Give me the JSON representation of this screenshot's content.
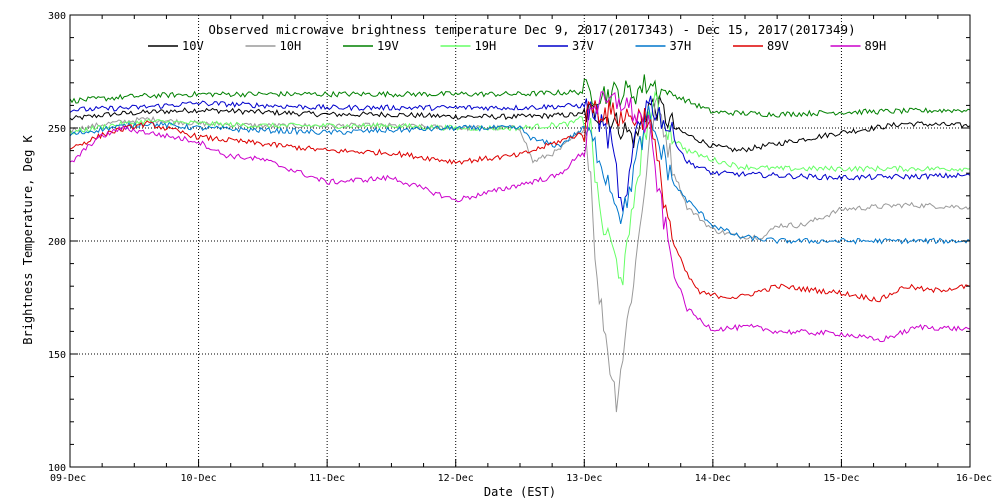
{
  "chart_data": {
    "type": "line",
    "title": "Observed microwave brightness temperature Dec  9, 2017(2017343) - Dec 15, 2017(2017349)",
    "xlabel": "Date (EST)",
    "ylabel": "Brightness Temperature, Deg K",
    "xlim": [
      0,
      7
    ],
    "ylim": [
      100,
      300
    ],
    "grid": true,
    "grid_style": "dotted",
    "legend_position": "top",
    "x_ticks": [
      {
        "value": 0,
        "label": "09-Dec"
      },
      {
        "value": 1,
        "label": "10-Dec"
      },
      {
        "value": 2,
        "label": "11-Dec"
      },
      {
        "value": 3,
        "label": "12-Dec"
      },
      {
        "value": 4,
        "label": "13-Dec"
      },
      {
        "value": 5,
        "label": "14-Dec"
      },
      {
        "value": 6,
        "label": "15-Dec"
      },
      {
        "value": 7,
        "label": "16-Dec"
      }
    ],
    "y_ticks": [
      {
        "value": 100,
        "label": "100"
      },
      {
        "value": 150,
        "label": "150"
      },
      {
        "value": 200,
        "label": "200"
      },
      {
        "value": 250,
        "label": "250"
      },
      {
        "value": 300,
        "label": "300"
      }
    ],
    "series": [
      {
        "name": "10V",
        "color": "#000000",
        "x": [
          0,
          0.3,
          0.6,
          1.0,
          1.5,
          2.0,
          2.5,
          3.0,
          3.5,
          4.0,
          4.1,
          4.2,
          4.3,
          4.4,
          4.5,
          4.6,
          4.7,
          4.8,
          5.0,
          5.2,
          5.5,
          6.0,
          6.5,
          7.0
        ],
        "y": [
          254,
          256,
          257,
          258,
          257,
          256,
          256,
          255,
          255,
          256,
          257,
          254,
          250,
          245,
          260,
          258,
          250,
          247,
          242,
          240,
          243,
          248,
          252,
          251
        ]
      },
      {
        "name": "10H",
        "color": "#9a9a9a",
        "x": [
          0,
          0.3,
          0.6,
          1.0,
          1.5,
          2.0,
          2.5,
          3.0,
          3.5,
          3.6,
          3.8,
          4.0,
          4.05,
          4.1,
          4.15,
          4.2,
          4.25,
          4.3,
          4.35,
          4.4,
          4.5,
          4.55,
          4.6,
          4.7,
          4.8,
          4.9,
          5.0,
          5.2,
          5.4,
          5.5,
          5.7,
          6.0,
          6.5,
          7.0
        ],
        "y": [
          249,
          252,
          254,
          252,
          251,
          251,
          251,
          250,
          250,
          235,
          240,
          250,
          230,
          180,
          165,
          145,
          130,
          150,
          170,
          190,
          240,
          260,
          255,
          230,
          215,
          210,
          205,
          202,
          202,
          207,
          207,
          214,
          216,
          215
        ]
      },
      {
        "name": "19V",
        "color": "#008000",
        "x": [
          0,
          0.5,
          1.0,
          2.0,
          3.0,
          3.5,
          4.0,
          4.2,
          4.4,
          4.5,
          4.6,
          4.8,
          5.0,
          5.5,
          6.0,
          7.0
        ],
        "y": [
          262,
          264,
          265,
          265,
          265,
          265,
          266,
          265,
          266,
          270,
          267,
          262,
          257,
          256,
          257,
          258
        ]
      },
      {
        "name": "19H",
        "color": "#66ff66",
        "x": [
          0,
          0.3,
          0.6,
          1.0,
          1.5,
          2.0,
          2.5,
          3.0,
          3.5,
          3.9,
          4.0,
          4.05,
          4.1,
          4.15,
          4.2,
          4.25,
          4.3,
          4.35,
          4.4,
          4.45,
          4.5,
          4.55,
          4.6,
          4.7,
          4.8,
          5.0,
          5.2,
          5.5,
          6.0,
          7.0
        ],
        "y": [
          248,
          251,
          253,
          252,
          251,
          251,
          251,
          250,
          250,
          252,
          255,
          250,
          220,
          205,
          200,
          190,
          185,
          200,
          225,
          240,
          255,
          260,
          255,
          245,
          240,
          236,
          233,
          232,
          232,
          232
        ]
      },
      {
        "name": "37V",
        "color": "#0000cc",
        "x": [
          0,
          0.5,
          1.0,
          1.5,
          2.0,
          2.5,
          3.0,
          3.5,
          4.0,
          4.1,
          4.2,
          4.25,
          4.3,
          4.35,
          4.4,
          4.5,
          4.6,
          4.7,
          4.8,
          5.0,
          5.5,
          6.0,
          7.0
        ],
        "y": [
          258,
          259,
          261,
          260,
          259,
          259,
          259,
          259,
          260,
          255,
          245,
          230,
          210,
          225,
          250,
          262,
          255,
          245,
          235,
          230,
          229,
          228,
          229
        ]
      },
      {
        "name": "37H",
        "color": "#0077cc",
        "x": [
          0,
          0.3,
          0.6,
          1.0,
          1.5,
          2.0,
          2.5,
          3.0,
          3.5,
          3.6,
          3.8,
          4.0,
          4.1,
          4.2,
          4.3,
          4.4,
          4.5,
          4.6,
          4.7,
          4.8,
          5.0,
          5.2,
          5.5,
          6.0,
          7.0
        ],
        "y": [
          247,
          250,
          252,
          250,
          249,
          248,
          249,
          250,
          250,
          245,
          242,
          250,
          240,
          225,
          210,
          235,
          255,
          240,
          225,
          218,
          207,
          202,
          200,
          200,
          200
        ]
      },
      {
        "name": "89V",
        "color": "#dd0000",
        "x": [
          0,
          0.3,
          0.6,
          1.0,
          1.5,
          2.0,
          2.5,
          3.0,
          3.5,
          4.0,
          4.05,
          4.1,
          4.3,
          4.5,
          4.6,
          4.7,
          4.8,
          4.9,
          5.0,
          5.2,
          5.5,
          6.0,
          6.3,
          6.5,
          6.7,
          7.0
        ],
        "y": [
          241,
          248,
          252,
          246,
          243,
          240,
          239,
          235,
          238,
          248,
          262,
          258,
          255,
          255,
          225,
          198,
          185,
          177,
          176,
          175,
          180,
          177,
          174,
          180,
          178,
          180
        ]
      },
      {
        "name": "89H",
        "color": "#cc00cc",
        "x": [
          0,
          0.2,
          0.4,
          0.6,
          1.0,
          1.2,
          1.5,
          2.0,
          2.5,
          3.0,
          3.3,
          3.5,
          3.8,
          4.0,
          4.05,
          4.1,
          4.3,
          4.5,
          4.6,
          4.7,
          4.8,
          4.9,
          5.0,
          5.3,
          5.5,
          6.0,
          6.3,
          6.6,
          7.0
        ],
        "y": [
          234,
          245,
          250,
          248,
          244,
          238,
          236,
          226,
          228,
          218,
          222,
          225,
          229,
          240,
          262,
          260,
          262,
          250,
          215,
          185,
          170,
          165,
          161,
          162,
          160,
          159,
          156,
          162,
          161
        ]
      }
    ]
  }
}
